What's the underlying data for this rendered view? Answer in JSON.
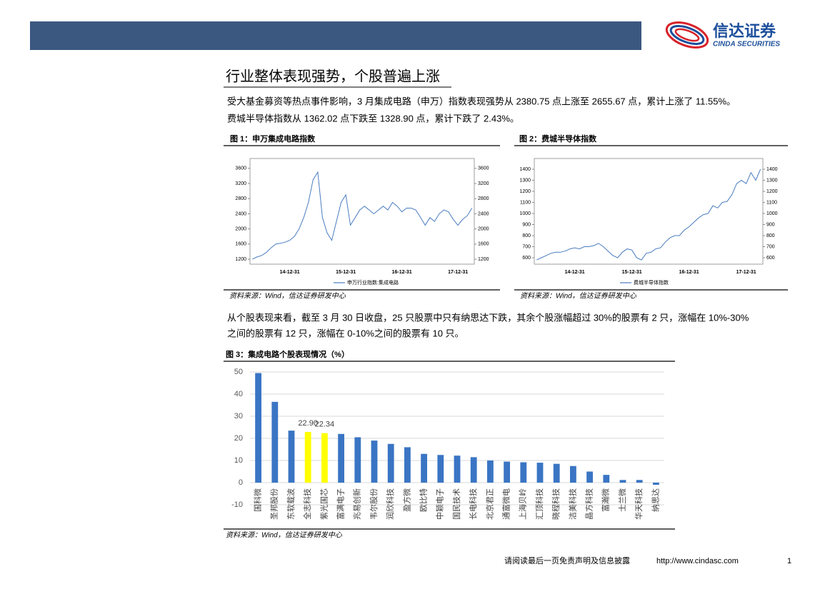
{
  "header": {
    "brand": "信达证券",
    "brand_en": "CINDA SECURITIES"
  },
  "section_title": "行业整体表现强势，个股普遍上涨",
  "paragraphs": [
    [
      "受大基金募资等热点事件影响，3 月集成电路（申万）指数表现强势从 2380.75 点上涨至 2655.67 点，累计上涨了 11.55%。",
      "费城半导体指数从 1362.02 点下跌至 1328.90 点，累计下跌了 2.43%。"
    ],
    [
      "从个股表现来看，截至 3 月 30 日收盘，25 只股票中只有纳思达下跌，其余个股涨幅超过 30%的股票有 2 只，涨幅在 10%-30%",
      "之间的股票有 12 只，涨幅在 0-10%之间的股票有 10 只。"
    ]
  ],
  "chart_data": [
    {
      "type": "line",
      "title": "图 1：申万集成电路指数",
      "source": "资料来源：Wind，信达证券研发中心",
      "categories": [
        null,
        null,
        null,
        null,
        null,
        null,
        null,
        null,
        "14-12-31",
        null,
        null,
        null,
        null,
        null,
        null,
        null,
        null,
        null,
        null,
        null,
        "15-12-31",
        null,
        null,
        null,
        null,
        null,
        null,
        null,
        null,
        null,
        null,
        null,
        "16-12-31",
        null,
        null,
        null,
        null,
        null,
        null,
        null,
        null,
        null,
        null,
        null,
        "17-12-31",
        null,
        null,
        null
      ],
      "series": [
        {
          "name": "申万行业指数:集成电路",
          "color": "#4a7cc0",
          "values": [
            1200,
            1260,
            1300,
            1380,
            1500,
            1600,
            1620,
            1650,
            1700,
            1800,
            2000,
            2300,
            2700,
            3300,
            3500,
            2300,
            1900,
            1700,
            2200,
            2700,
            2900,
            2100,
            2300,
            2500,
            2600,
            2500,
            2400,
            2500,
            2600,
            2500,
            2700,
            2600,
            2450,
            2550,
            2550,
            2500,
            2300,
            2100,
            2300,
            2200,
            2400,
            2500,
            2450,
            2250,
            2100,
            2250,
            2350,
            2550
          ]
        }
      ],
      "ylim": [
        1070,
        3860
      ],
      "yticks": [
        1200,
        1600,
        2000,
        2400,
        2800,
        3200,
        3600
      ],
      "y2lim": [
        1070,
        3860
      ],
      "y2ticks": [
        1200,
        1600,
        2000,
        2400,
        2800,
        3200,
        3600
      ]
    },
    {
      "type": "line",
      "title": "图 2：费城半导体指数",
      "source": "资料来源：Wind，信达证券研发中心",
      "categories": [
        null,
        null,
        null,
        null,
        null,
        null,
        null,
        null,
        "14-12-31",
        null,
        null,
        null,
        null,
        null,
        null,
        null,
        null,
        null,
        null,
        null,
        "15-12-31",
        null,
        null,
        null,
        null,
        null,
        null,
        null,
        null,
        null,
        null,
        null,
        "16-12-31",
        null,
        null,
        null,
        null,
        null,
        null,
        null,
        null,
        null,
        null,
        null,
        "17-12-31",
        null,
        null,
        null
      ],
      "series": [
        {
          "name": "费城半导体指数",
          "color": "#4a7cc0",
          "values": [
            580,
            600,
            620,
            640,
            650,
            650,
            660,
            680,
            690,
            680,
            700,
            700,
            710,
            730,
            700,
            660,
            620,
            600,
            650,
            680,
            670,
            600,
            580,
            640,
            650,
            680,
            690,
            740,
            780,
            800,
            800,
            850,
            880,
            920,
            960,
            990,
            1000,
            1070,
            1050,
            1100,
            1110,
            1170,
            1270,
            1300,
            1270,
            1370,
            1300,
            1400
          ]
        }
      ],
      "ylim": [
        542,
        1497
      ],
      "yticks": [
        600,
        700,
        800,
        900,
        1000,
        1100,
        1200,
        1300,
        1400
      ],
      "y2lim": [
        542,
        1497
      ],
      "y2ticks": [
        600,
        700,
        800,
        900,
        1000,
        1100,
        1200,
        1300,
        1400
      ]
    },
    {
      "type": "bar",
      "title": "图 3：集成电路个股表现情况（%）",
      "source": "资料来源：Wind，信达证券研发中心",
      "categories": [
        "国科微",
        "圣邦股份",
        "东软载波",
        "全志科技",
        "紫光国芯",
        "富满电子",
        "兆易创新",
        "韦尔股份",
        "润欣科技",
        "盈方微",
        "欧比特",
        "中颖电子",
        "国民技术",
        "长电科技",
        "北京君正",
        "通富微电",
        "上海贝岭",
        "汇顶科技",
        "晓程科技",
        "洁美科技",
        "晶方科技",
        "富瀚微",
        "士兰微",
        "华天科技",
        "纳思达"
      ],
      "values": [
        49.5,
        36.5,
        23.5,
        22.9,
        22.34,
        22,
        20.5,
        19,
        17.5,
        16,
        13,
        12.5,
        12.2,
        11.5,
        10,
        9.5,
        9.2,
        9,
        8.5,
        7.5,
        5,
        3.5,
        1.2,
        1.2,
        -1
      ],
      "value_labels": [
        null,
        null,
        null,
        "22.90",
        "22.34",
        null,
        null,
        null,
        null,
        null,
        null,
        null,
        null,
        null,
        null,
        null,
        null,
        null,
        null,
        null,
        null,
        null,
        null,
        null,
        null
      ],
      "colors": [
        "#3a75c4",
        "#3a75c4",
        "#3a75c4",
        "#ffff00",
        "#ffff00",
        "#3a75c4",
        "#3a75c4",
        "#3a75c4",
        "#3a75c4",
        "#3a75c4",
        "#3a75c4",
        "#3a75c4",
        "#3a75c4",
        "#3a75c4",
        "#3a75c4",
        "#3a75c4",
        "#3a75c4",
        "#3a75c4",
        "#3a75c4",
        "#3a75c4",
        "#3a75c4",
        "#3a75c4",
        "#3a75c4",
        "#3a75c4",
        "#3a75c4"
      ],
      "ylim": [
        -10,
        50
      ],
      "yticks": [
        -10,
        0,
        10,
        20,
        30,
        40,
        50
      ],
      "grid": true
    }
  ],
  "footer": {
    "disclaimer": "请阅读最后一页免责声明及信息披露",
    "url": "http://www.cindasc.com",
    "page": 1
  }
}
